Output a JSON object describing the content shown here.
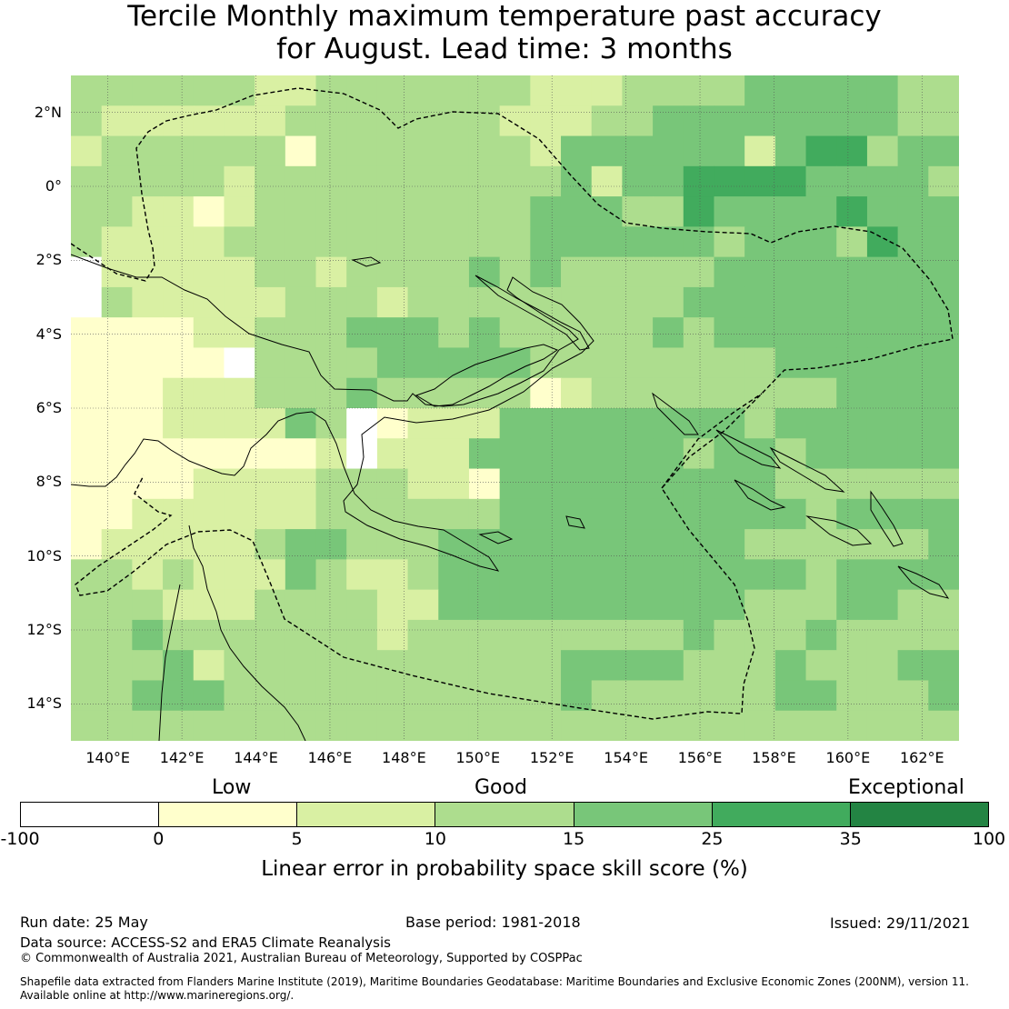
{
  "title": {
    "line1": "Tercile Monthly maximum temperature past accuracy",
    "line2": "for August. Lead time: 3 months"
  },
  "map": {
    "lat_labels": [
      "2°N",
      "0°",
      "2°S",
      "4°S",
      "6°S",
      "8°S",
      "10°S",
      "12°S",
      "14°S"
    ],
    "lon_labels": [
      "140°E",
      "142°E",
      "144°E",
      "146°E",
      "148°E",
      "150°E",
      "152°E",
      "154°E",
      "156°E",
      "158°E",
      "160°E",
      "162°E"
    ],
    "lon_range": [
      139,
      163
    ],
    "lat_range": [
      -15,
      3
    ],
    "grid": "on",
    "cells_cols": 29,
    "cells_rows": 22,
    "class_rows": [
      "33333322333333322233334444433",
      "32222223333333222334444444433",
      "23333331333333324444442455344",
      "33333233333333334244555544443",
      "33221233333333344433544445444",
      "32222333333333344444434443544",
      "02222233233334343333344444444",
      "03222223332333333333444444444",
      "11112233344434333334344444444",
      "11111033334444433333333444444",
      "11122233343333312333333334444",
      "11122224301222444444443444444",
      "11111111202224444444344344444",
      "11112222333221444444444333333",
      "11222222333333444444444434444",
      "12222234433344444444443333334",
      "33232224322344444444444434444",
      "33322233332244444444443334433",
      "33433333332333333333433343333",
      "33342333333333334444333433344",
      "33444333333333334333333443334",
      "33333333333333333333333333333"
    ]
  },
  "colorbar": {
    "ticks": [
      "-100",
      "0",
      "5",
      "10",
      "15",
      "25",
      "35",
      "100"
    ],
    "colors": [
      "#ffffff",
      "#ffffcc",
      "#d9f0a3",
      "#addd8e",
      "#78c679",
      "#41ab5d",
      "#238443"
    ],
    "headings": {
      "low": "Low",
      "good": "Good",
      "exceptional": "Exceptional"
    },
    "caption": "Linear error in probability space skill score (%)"
  },
  "footer": {
    "run_date": "Run date: 25 May",
    "base_period": "Base period: 1981-2018",
    "issued": "Issued: 29/11/2021",
    "data_source": "Data source: ACCESS-S2 and ERA5 Climate Reanalysis",
    "copyright": "© Commonwealth of Australia 2021, Australian Bureau of Meteorology, Supported by COSPPac",
    "shapefile_line1": "Shapefile data extracted from Flanders Marine Institute (2019), Maritime Boundaries Geodatabase: Maritime Boundaries and Exclusive Economic Zones (200NM), version 11.",
    "shapefile_line2": "Available online at http://www.marineregions.org/."
  }
}
